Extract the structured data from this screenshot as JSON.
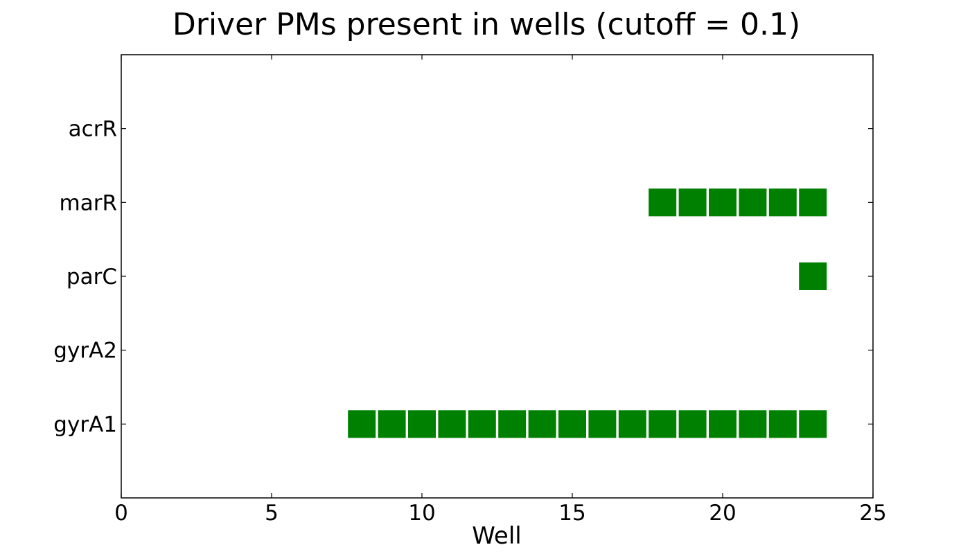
{
  "chart_data": {
    "type": "scatter",
    "title": "Driver PMs present in wells (cutoff = 0.1)",
    "xlabel": "Well",
    "ylabel": "",
    "xlim": [
      0,
      25
    ],
    "x_ticks": [
      "0",
      "5",
      "10",
      "15",
      "20",
      "25"
    ],
    "categories": [
      "acrR",
      "marR",
      "parC",
      "gyrA2",
      "gyrA1"
    ],
    "marker": "square",
    "marker_color": "#008000",
    "grid": false,
    "legend": "none",
    "series": [
      {
        "category": "acrR",
        "x": []
      },
      {
        "category": "marR",
        "x": [
          18,
          19,
          20,
          21,
          22,
          23
        ]
      },
      {
        "category": "parC",
        "x": [
          23
        ]
      },
      {
        "category": "gyrA2",
        "x": []
      },
      {
        "category": "gyrA1",
        "x": [
          8,
          9,
          10,
          11,
          12,
          13,
          14,
          15,
          16,
          17,
          18,
          19,
          20,
          21,
          22,
          23
        ]
      }
    ]
  }
}
